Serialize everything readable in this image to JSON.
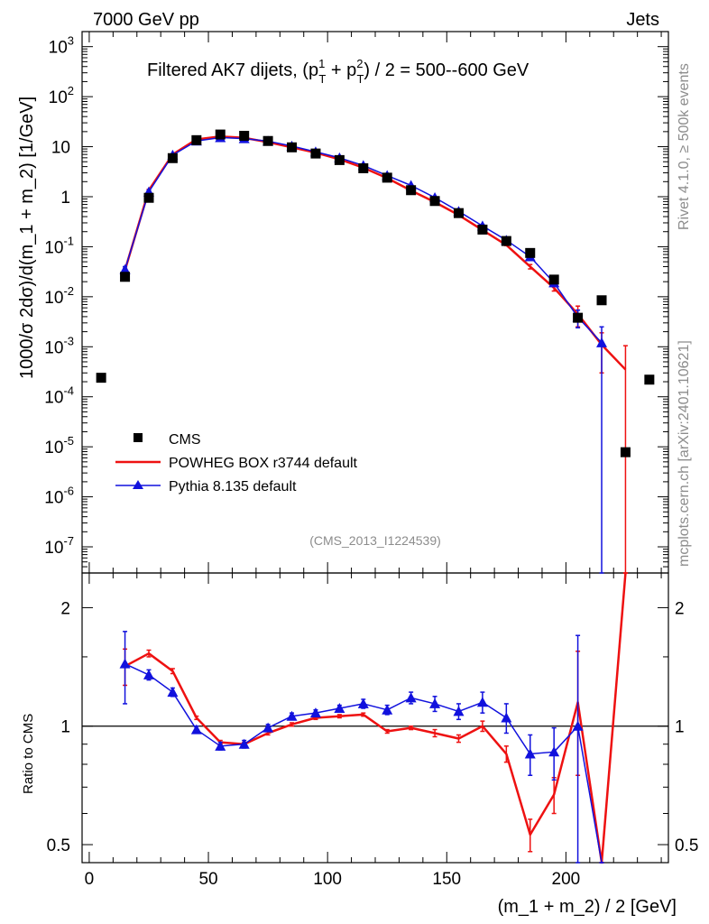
{
  "header": {
    "left": "7000 GeV pp",
    "right": "Jets",
    "rivet": "Rivet 4.1.0, ≥ 500k events",
    "mcplots": "mcplots.cern.ch [arXiv:2401.10621]"
  },
  "colors": {
    "cms": "#000000",
    "powheg": "#ee1111",
    "pythia": "#1111dd"
  },
  "chart_data": [
    {
      "type": "line",
      "title_main": "Filtered AK7 dijets, (p",
      "title_sup1": "1",
      "title_sup2": "2",
      "title_sub": "T",
      "title_plus": " + p",
      "title_rest": ") / 2 = 500--600 GeV",
      "analysis": "(CMS_2013_I1224539)",
      "ylabel": "1000/σ   2dσ)/d(m_1 + m_2) [1/GeV]",
      "yscale": "log",
      "ylim": [
        3e-08,
        2000
      ],
      "xlim": [
        -3,
        243
      ],
      "yticks": [
        {
          "v": 1e-07,
          "b": "10",
          "e": "-7"
        },
        {
          "v": 1e-06,
          "b": "10",
          "e": "-6"
        },
        {
          "v": 1e-05,
          "b": "10",
          "e": "-5"
        },
        {
          "v": 0.0001,
          "b": "10",
          "e": "-4"
        },
        {
          "v": 0.001,
          "b": "10",
          "e": "-3"
        },
        {
          "v": 0.01,
          "b": "10",
          "e": "-2"
        },
        {
          "v": 0.1,
          "b": "10",
          "e": "-1"
        },
        {
          "v": 1,
          "b": "1",
          "e": ""
        },
        {
          "v": 10,
          "b": "10",
          "e": ""
        },
        {
          "v": 100,
          "b": "10",
          "e": "2"
        },
        {
          "v": 1000,
          "b": "10",
          "e": "3"
        }
      ],
      "legend": [
        {
          "label": "CMS",
          "style": "square"
        },
        {
          "label": "POWHEG BOX r3744 default",
          "style": "line"
        },
        {
          "label": "Pythia 8.135 default",
          "style": "triangle"
        }
      ],
      "series": [
        {
          "name": "CMS",
          "x": [
            5,
            15,
            25,
            35,
            45,
            55,
            65,
            75,
            85,
            95,
            105,
            115,
            125,
            135,
            145,
            155,
            165,
            175,
            185,
            195,
            205,
            215,
            225,
            235
          ],
          "y": [
            0.00024,
            0.025,
            0.95,
            5.9,
            13.5,
            17.5,
            16.5,
            13.0,
            9.7,
            7.3,
            5.4,
            3.7,
            2.4,
            1.35,
            0.82,
            0.47,
            0.22,
            0.13,
            0.075,
            0.022,
            0.0038,
            0.0085,
            7.8e-06,
            0.00022
          ]
        },
        {
          "name": "POWHEG BOX r3744 default",
          "x": [
            15,
            25,
            35,
            45,
            55,
            65,
            75,
            85,
            95,
            105,
            115,
            125,
            135,
            145,
            155,
            165,
            175,
            185,
            195,
            205,
            215,
            225
          ],
          "y": [
            0.034,
            1.35,
            7.0,
            14.0,
            16.0,
            15.0,
            12.3,
            9.7,
            7.6,
            5.6,
            3.8,
            2.35,
            1.33,
            0.78,
            0.43,
            0.215,
            0.108,
            0.04,
            0.015,
            0.0045,
            0.0011,
            0.00035
          ],
          "err": [
            0.003,
            0.05,
            0.1,
            0.1,
            0.1,
            0.1,
            0.1,
            0.08,
            0.06,
            0.05,
            0.03,
            0.02,
            0.01,
            0.01,
            0.008,
            0.005,
            0.003,
            0.004,
            0.002,
            0.002,
            0.0008,
            0.0007
          ]
        },
        {
          "name": "Pythia 8.135 default",
          "x": [
            15,
            25,
            35,
            45,
            55,
            65,
            75,
            85,
            95,
            105,
            115,
            125,
            135,
            145,
            155,
            165,
            175,
            185,
            195,
            205,
            215
          ],
          "y": [
            0.035,
            1.25,
            6.8,
            13.0,
            15.2,
            14.5,
            12.9,
            10.3,
            7.9,
            6.0,
            4.2,
            2.65,
            1.68,
            0.96,
            0.51,
            0.26,
            0.135,
            0.063,
            0.019,
            0.0039,
            0.0012
          ],
          "err": [
            0.005,
            0.08,
            0.25,
            0.3,
            0.3,
            0.3,
            0.25,
            0.2,
            0.15,
            0.12,
            0.1,
            0.07,
            0.05,
            0.03,
            0.02,
            0.015,
            0.01,
            0.006,
            0.003,
            0.0015,
            0.0013
          ]
        }
      ]
    },
    {
      "type": "line",
      "ylabel": "Ratio to CMS",
      "xlabel": "(m_1 + m_2) / 2 [GeV]",
      "ylim": [
        0.45,
        2.45
      ],
      "xlim": [
        -3,
        243
      ],
      "xticks": [
        0,
        50,
        100,
        150,
        200
      ],
      "yticks": [
        {
          "v": 0.5,
          "label": "0.5"
        },
        {
          "v": 1,
          "label": "1"
        },
        {
          "v": 2,
          "label": "2"
        }
      ],
      "reference": 1,
      "series": [
        {
          "name": "POWHEG BOX r3744 default",
          "x": [
            15,
            25,
            35,
            45,
            55,
            65,
            75,
            85,
            95,
            105,
            115,
            125,
            135,
            145,
            155,
            165,
            175,
            185,
            195,
            205,
            215,
            225
          ],
          "y": [
            1.42,
            1.53,
            1.38,
            1.05,
            0.91,
            0.9,
            0.96,
            1.01,
            1.05,
            1.06,
            1.07,
            0.97,
            0.99,
            0.96,
            0.93,
            1.0,
            0.85,
            0.53,
            0.67,
            1.15,
            0.35,
            2.6
          ],
          "err": [
            0.15,
            0.03,
            0.02,
            0.01,
            0.01,
            0.01,
            0.01,
            0.01,
            0.01,
            0.01,
            0.01,
            0.01,
            0.01,
            0.02,
            0.02,
            0.03,
            0.04,
            0.05,
            0.07,
            0.4,
            0.1,
            0.1
          ]
        },
        {
          "name": "Pythia 8.135 default",
          "x": [
            15,
            25,
            35,
            45,
            55,
            65,
            75,
            85,
            95,
            105,
            115,
            125,
            135,
            145,
            155,
            165,
            175,
            185,
            195,
            205,
            215
          ],
          "y": [
            1.44,
            1.35,
            1.22,
            0.98,
            0.89,
            0.9,
            0.99,
            1.06,
            1.08,
            1.11,
            1.14,
            1.1,
            1.18,
            1.14,
            1.09,
            1.15,
            1.05,
            0.85,
            0.86,
            1.0,
            0.35
          ],
          "err": [
            0.3,
            0.04,
            0.03,
            0.02,
            0.02,
            0.02,
            0.02,
            0.02,
            0.02,
            0.02,
            0.03,
            0.03,
            0.04,
            0.05,
            0.05,
            0.07,
            0.09,
            0.1,
            0.13,
            0.7,
            0.1
          ]
        }
      ]
    }
  ]
}
